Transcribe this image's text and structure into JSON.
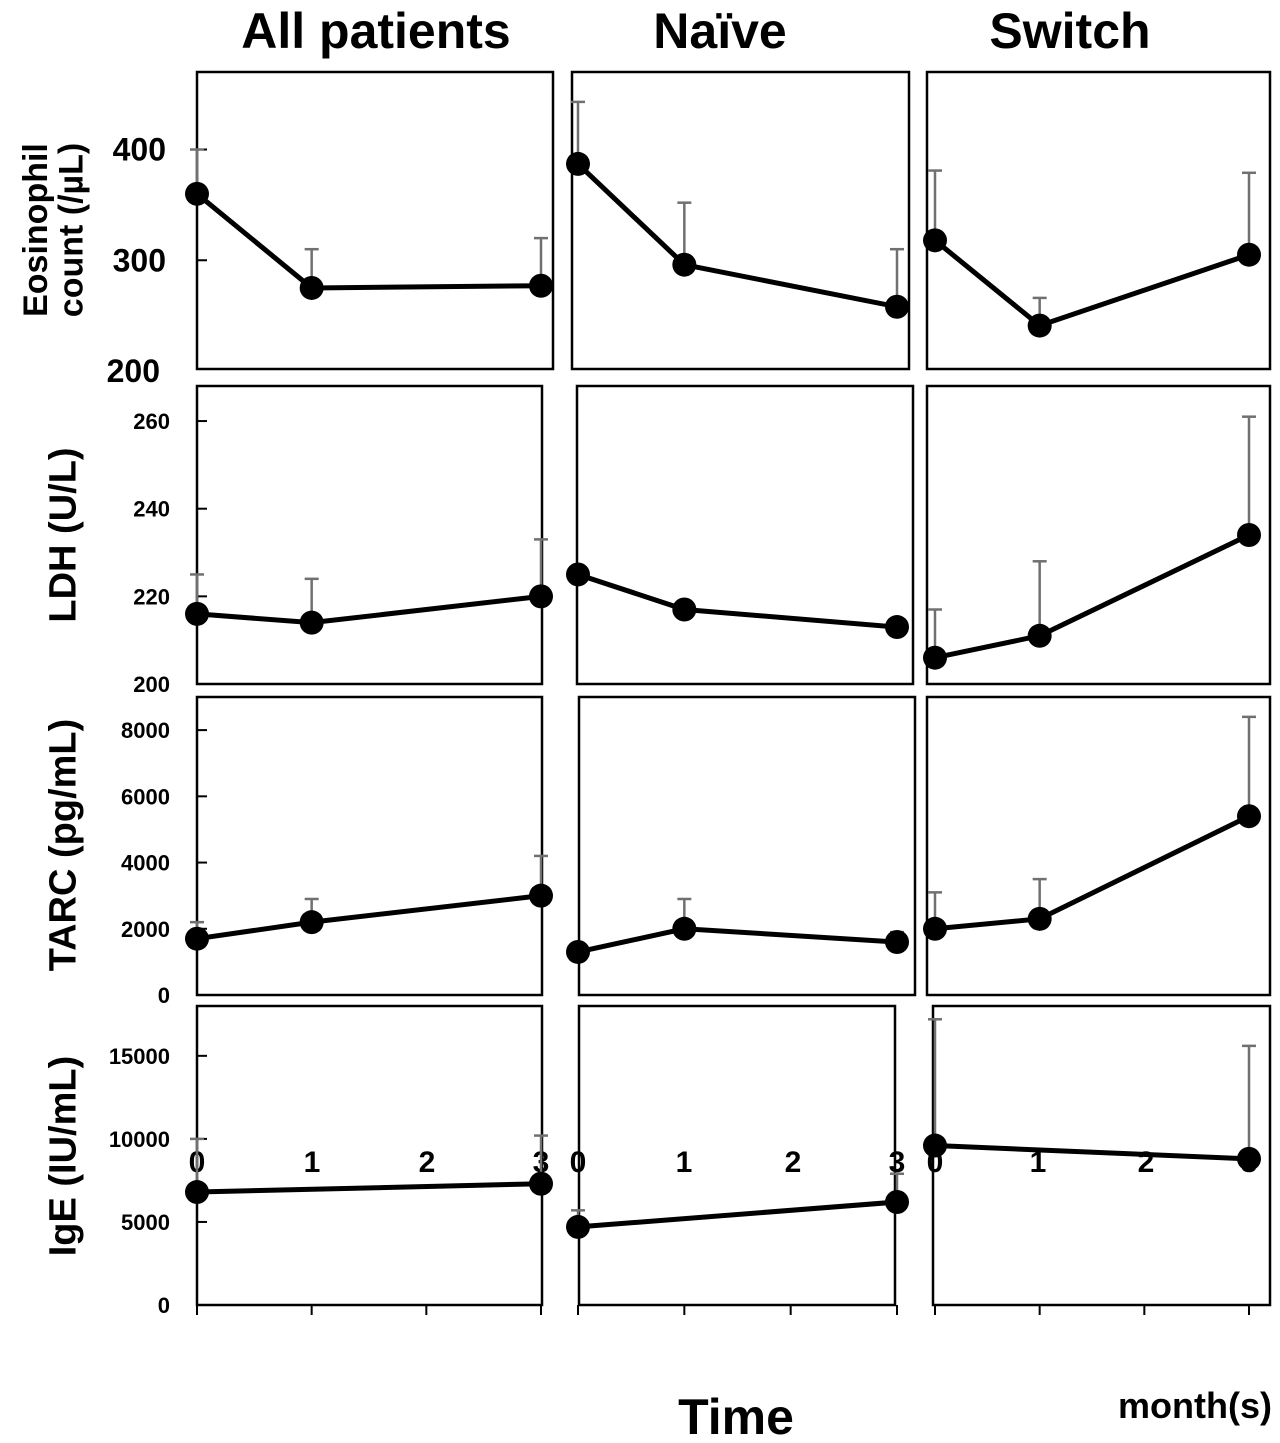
{
  "columns": [
    "All patients",
    "Naïve",
    "Switch"
  ],
  "x_axis": {
    "ticks": [
      "0",
      "1",
      "2",
      "3"
    ],
    "label": "Time",
    "unit": "month(s)"
  },
  "colors": {
    "line": "#000000",
    "marker": "#000000",
    "error_bar": "#707070",
    "frame": "#000000"
  },
  "chart_data": [
    {
      "type": "line",
      "ylabel": [
        "Eosinophil",
        "count (/µL)"
      ],
      "ylim": [
        200,
        470
      ],
      "yticks": [
        200,
        300,
        400
      ],
      "panels": [
        {
          "column": "All patients",
          "x": [
            0,
            1,
            3
          ],
          "y": [
            360,
            275,
            277
          ],
          "err_upper": [
            400,
            310,
            320
          ]
        },
        {
          "column": "Naïve",
          "x": [
            0,
            1,
            3
          ],
          "y": [
            387,
            296,
            258
          ],
          "err_upper": [
            443,
            352,
            310
          ]
        },
        {
          "column": "Switch",
          "x": [
            0,
            1,
            3
          ],
          "y": [
            318,
            241,
            305
          ],
          "err_upper": [
            381,
            266,
            379
          ]
        }
      ]
    },
    {
      "type": "line",
      "ylabel": [
        "LDH (U/L)"
      ],
      "ylim": [
        200,
        268
      ],
      "yticks": [
        200,
        220,
        240,
        260
      ],
      "panels": [
        {
          "column": "All patients",
          "x": [
            0,
            1,
            3
          ],
          "y": [
            216,
            214,
            220
          ],
          "err_upper": [
            225,
            224,
            233
          ]
        },
        {
          "column": "Naïve",
          "x": [
            0,
            1,
            3
          ],
          "y": [
            225,
            217,
            213
          ],
          "err_upper": [
            null,
            null,
            null
          ]
        },
        {
          "column": "Switch",
          "x": [
            0,
            1,
            3
          ],
          "y": [
            206,
            211,
            234
          ],
          "err_upper": [
            217,
            228,
            261
          ]
        }
      ]
    },
    {
      "type": "line",
      "ylabel": [
        "TARC (pg/mL)"
      ],
      "ylim": [
        0,
        9000
      ],
      "yticks": [
        0,
        2000,
        4000,
        6000,
        8000
      ],
      "panels": [
        {
          "column": "All patients",
          "x": [
            0,
            1,
            3
          ],
          "y": [
            1700,
            2200,
            3000
          ],
          "err_upper": [
            2200,
            2900,
            4200
          ]
        },
        {
          "column": "Naïve",
          "x": [
            0,
            1,
            3
          ],
          "y": [
            1300,
            2000,
            1600
          ],
          "err_upper": [
            null,
            2900,
            1900
          ]
        },
        {
          "column": "Switch",
          "x": [
            0,
            1,
            3
          ],
          "y": [
            2000,
            2300,
            5400
          ],
          "err_upper": [
            3100,
            3500,
            8400
          ]
        }
      ]
    },
    {
      "type": "line",
      "ylabel": [
        "IgE (IU/mL)"
      ],
      "ylim": [
        0,
        18000
      ],
      "yticks": [
        0,
        5000,
        10000,
        15000
      ],
      "panels": [
        {
          "column": "All patients",
          "x": [
            0,
            3
          ],
          "y": [
            6800,
            7300
          ],
          "err_upper": [
            10000,
            10200
          ]
        },
        {
          "column": "Naïve",
          "x": [
            0,
            3
          ],
          "y": [
            4700,
            6200
          ],
          "err_upper": [
            5700,
            7900
          ]
        },
        {
          "column": "Switch",
          "x": [
            0,
            3
          ],
          "y": [
            9600,
            8800
          ],
          "err_upper": [
            17200,
            15600
          ]
        }
      ]
    }
  ]
}
